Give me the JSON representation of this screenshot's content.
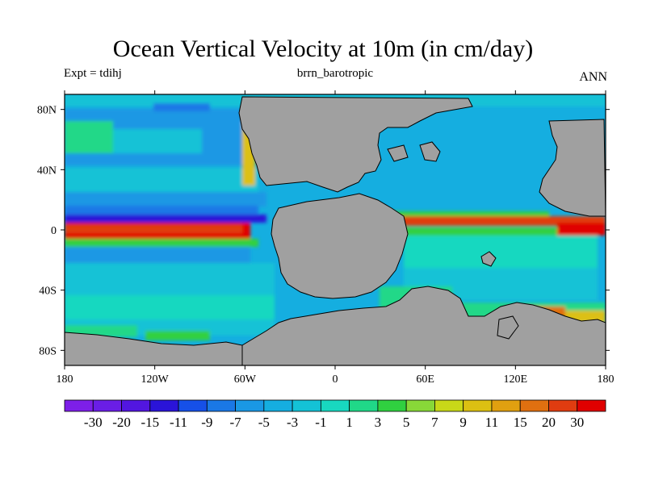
{
  "title": "Ocean Vertical Velocity at 10m (in cm/day)",
  "left_string": "Expt = tdihj",
  "center_string": "brrn_barotropic",
  "right_string": "ANN",
  "colors": {
    "land": "#a0a0a0",
    "frame": "#000000"
  },
  "map": {
    "lon_range": [
      -180,
      180
    ],
    "lat_range": [
      -90,
      90
    ],
    "x_ticks": [
      {
        "value": -180,
        "label": "180"
      },
      {
        "value": -120,
        "label": "120W"
      },
      {
        "value": -60,
        "label": "60W"
      },
      {
        "value": 0,
        "label": "0"
      },
      {
        "value": 60,
        "label": "60E"
      },
      {
        "value": 120,
        "label": "120E"
      },
      {
        "value": 180,
        "label": "180"
      }
    ],
    "y_ticks": [
      {
        "value": 80,
        "label": "80N"
      },
      {
        "value": 40,
        "label": "40N"
      },
      {
        "value": 0,
        "label": "0"
      },
      {
        "value": -40,
        "label": "40S"
      },
      {
        "value": -80,
        "label": "80S"
      }
    ]
  },
  "colorbar": {
    "labels": [
      "-30",
      "-20",
      "-15",
      "-11",
      "-9",
      "-7",
      "-5",
      "-3",
      "-1",
      "1",
      "3",
      "5",
      "7",
      "9",
      "11",
      "15",
      "20",
      "30"
    ],
    "colors": [
      "#7d1fe8",
      "#6a1ee6",
      "#5216e0",
      "#2a14d8",
      "#1650e8",
      "#1a78e6",
      "#1a98e4",
      "#15aee0",
      "#14c2d6",
      "#18d8c0",
      "#20d888",
      "#30d040",
      "#88d838",
      "#c8d818",
      "#dcc012",
      "#e0a010",
      "#e07010",
      "#e03c10",
      "#e00000"
    ]
  }
}
